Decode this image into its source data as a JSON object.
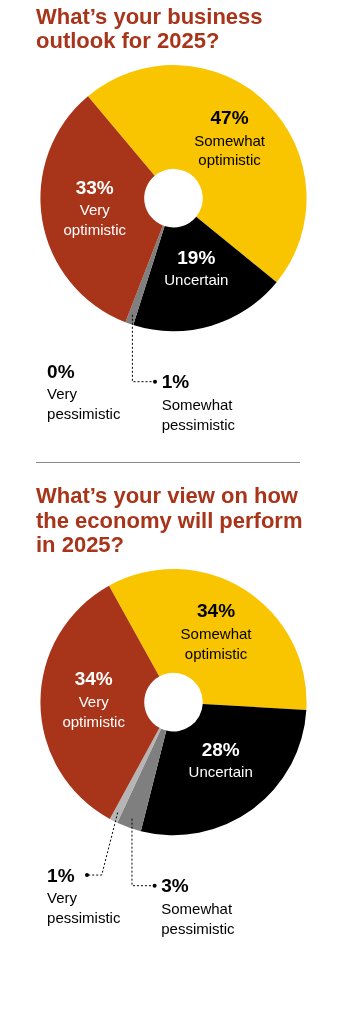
{
  "chart_data": [
    {
      "type": "donut",
      "title": "What’s your business outlook for 2025?",
      "categories": [
        "Somewhat optimistic",
        "Uncertain",
        "Somewhat pessimistic",
        "Very pessimistic",
        "Very optimistic"
      ],
      "values": [
        47,
        19,
        1,
        0,
        33
      ],
      "value_labels": [
        "47%",
        "19%",
        "1%",
        "0%",
        "33%"
      ],
      "colors": [
        "#f9c400",
        "#000000",
        "#7f7f7f",
        "#b5b5b5",
        "#a8341a"
      ],
      "legend": false
    },
    {
      "type": "donut",
      "title": "What’s your view on how the economy will perform in 2025?",
      "categories": [
        "Somewhat optimistic",
        "Uncertain",
        "Somewhat pessimistic",
        "Very pessimistic",
        "Very optimistic"
      ],
      "values": [
        34,
        28,
        3,
        1,
        34
      ],
      "value_labels": [
        "34%",
        "28%",
        "3%",
        "1%",
        "34%"
      ],
      "colors": [
        "#f9c400",
        "#000000",
        "#7f7f7f",
        "#b5b5b5",
        "#a8341a"
      ],
      "legend": false
    }
  ]
}
